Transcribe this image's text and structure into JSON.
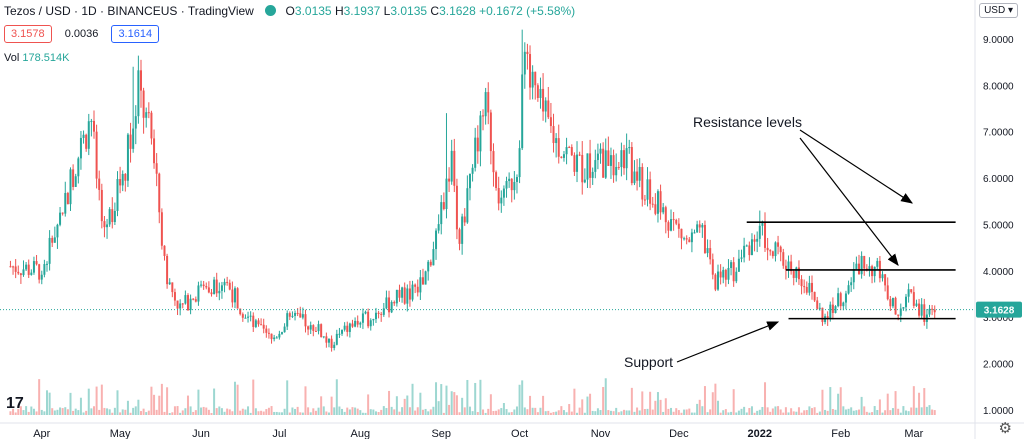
{
  "legend": {
    "symbol": "Tezos / USD · 1D · BINANCEUS · TradingView",
    "o_label": "O",
    "o": "3.0135",
    "h_label": "H",
    "h": "3.1937",
    "l_label": "L",
    "l": "3.0135",
    "c_label": "C",
    "c": "3.1628",
    "change": "+0.1672 (+5.58%)"
  },
  "pills": {
    "bid": "3.1578",
    "spread": "0.0036",
    "ask": "3.1614"
  },
  "volume": {
    "label": "Vol",
    "value": "178.514K"
  },
  "currency": "USD ▾",
  "tv_logo": "17",
  "annotations": {
    "resistance": "Resistance levels",
    "support": "Support"
  },
  "colors": {
    "up": "#26a69a",
    "down": "#ef5350",
    "last": "#26a69a"
  },
  "chart_data": {
    "type": "candlestick",
    "title": "Tezos / USD · 1D · BINANCEUS",
    "ylim": [
      1.0,
      9.3
    ],
    "y_ticks": [
      "9.0000",
      "8.0000",
      "7.0000",
      "6.0000",
      "5.0000",
      "4.0000",
      "3.0000",
      "2.0000",
      "1.0000"
    ],
    "y_tick_values": [
      9,
      8,
      7,
      6,
      5,
      4,
      3,
      2,
      1
    ],
    "x_ticks": [
      "Apr",
      "May",
      "Jun",
      "Jul",
      "Aug",
      "Sep",
      "Oct",
      "Nov",
      "Dec",
      "2022",
      "Feb",
      "Mar"
    ],
    "x_tick_dates": [
      "2021-04-01",
      "2021-05-01",
      "2021-06-01",
      "2021-07-01",
      "2021-08-01",
      "2021-09-01",
      "2021-10-01",
      "2021-11-01",
      "2021-12-01",
      "2022-01-01",
      "2022-02-01",
      "2022-03-01"
    ],
    "last_price": 3.1628,
    "last_price_label": "3.1628",
    "close_path": [
      {
        "date": "2021-03-20",
        "v": 4.1
      },
      {
        "date": "2021-04-01",
        "v": 4.0
      },
      {
        "date": "2021-04-08",
        "v": 5.2
      },
      {
        "date": "2021-04-15",
        "v": 6.5
      },
      {
        "date": "2021-04-20",
        "v": 7.3
      },
      {
        "date": "2021-04-24",
        "v": 4.8
      },
      {
        "date": "2021-04-29",
        "v": 5.5
      },
      {
        "date": "2021-05-03",
        "v": 6.3
      },
      {
        "date": "2021-05-08",
        "v": 7.9
      },
      {
        "date": "2021-05-13",
        "v": 6.8
      },
      {
        "date": "2021-05-19",
        "v": 3.8
      },
      {
        "date": "2021-05-24",
        "v": 3.2
      },
      {
        "date": "2021-06-01",
        "v": 3.6
      },
      {
        "date": "2021-06-10",
        "v": 3.8
      },
      {
        "date": "2021-06-20",
        "v": 2.9
      },
      {
        "date": "2021-06-28",
        "v": 2.5
      },
      {
        "date": "2021-07-05",
        "v": 3.0
      },
      {
        "date": "2021-07-15",
        "v": 2.8
      },
      {
        "date": "2021-07-20",
        "v": 2.4
      },
      {
        "date": "2021-07-28",
        "v": 2.8
      },
      {
        "date": "2021-08-05",
        "v": 3.0
      },
      {
        "date": "2021-08-15",
        "v": 3.4
      },
      {
        "date": "2021-08-25",
        "v": 3.7
      },
      {
        "date": "2021-09-01",
        "v": 5.2
      },
      {
        "date": "2021-09-05",
        "v": 6.4
      },
      {
        "date": "2021-09-08",
        "v": 4.6
      },
      {
        "date": "2021-09-13",
        "v": 6.5
      },
      {
        "date": "2021-09-18",
        "v": 7.5
      },
      {
        "date": "2021-09-24",
        "v": 5.3
      },
      {
        "date": "2021-09-30",
        "v": 6.3
      },
      {
        "date": "2021-10-03",
        "v": 8.6
      },
      {
        "date": "2021-10-08",
        "v": 7.6
      },
      {
        "date": "2021-10-15",
        "v": 6.8
      },
      {
        "date": "2021-10-25",
        "v": 6.2
      },
      {
        "date": "2021-11-02",
        "v": 6.3
      },
      {
        "date": "2021-11-10",
        "v": 6.5
      },
      {
        "date": "2021-11-18",
        "v": 5.7
      },
      {
        "date": "2021-11-28",
        "v": 5.1
      },
      {
        "date": "2021-12-04",
        "v": 4.6
      },
      {
        "date": "2021-12-10",
        "v": 4.8
      },
      {
        "date": "2021-12-14",
        "v": 3.8
      },
      {
        "date": "2021-12-22",
        "v": 4.0
      },
      {
        "date": "2021-12-28",
        "v": 4.6
      },
      {
        "date": "2022-01-02",
        "v": 4.8
      },
      {
        "date": "2022-01-08",
        "v": 4.3
      },
      {
        "date": "2022-01-15",
        "v": 4.0
      },
      {
        "date": "2022-01-21",
        "v": 3.5
      },
      {
        "date": "2022-01-25",
        "v": 3.0
      },
      {
        "date": "2022-02-02",
        "v": 3.5
      },
      {
        "date": "2022-02-09",
        "v": 4.2
      },
      {
        "date": "2022-02-15",
        "v": 4.0
      },
      {
        "date": "2022-02-22",
        "v": 3.1
      },
      {
        "date": "2022-02-28",
        "v": 3.5
      },
      {
        "date": "2022-03-05",
        "v": 3.0
      },
      {
        "date": "2022-03-09",
        "v": 3.16
      }
    ],
    "spikes": [
      {
        "date": "2021-05-06",
        "high": 8.4
      },
      {
        "date": "2021-09-03",
        "high": 7.4
      },
      {
        "date": "2021-10-02",
        "high": 9.2
      },
      {
        "date": "2022-01-01",
        "high": 5.3
      }
    ],
    "resistance_levels": [
      {
        "value": 5.05,
        "from": "2021-12-27",
        "to": "2022-03-17"
      },
      {
        "value": 4.02,
        "from": "2022-01-11",
        "to": "2022-03-17"
      }
    ],
    "support_level": {
      "value": 2.97,
      "from": "2022-01-12",
      "to": "2022-03-17"
    }
  }
}
